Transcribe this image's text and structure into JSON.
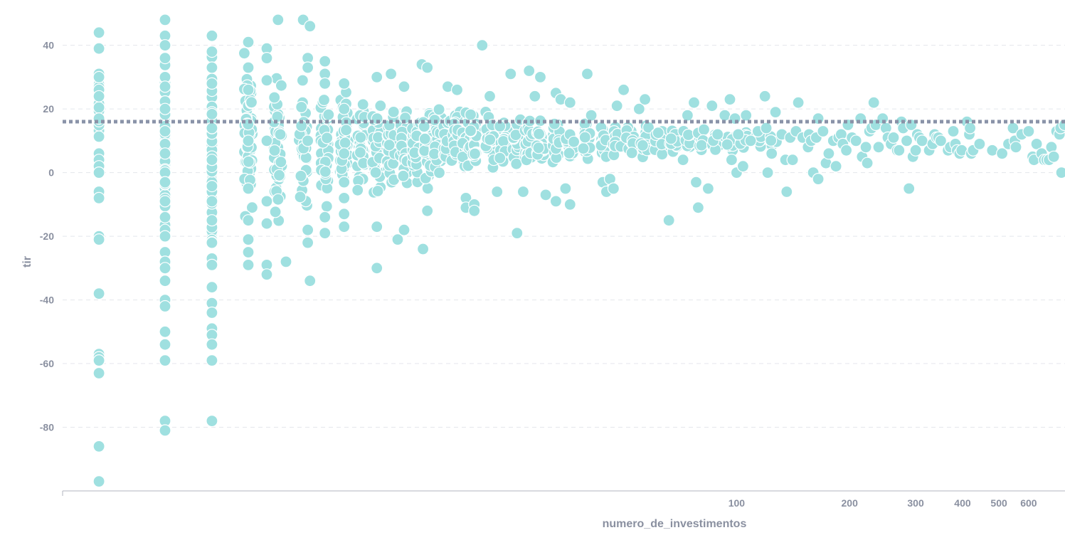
{
  "chart_data": {
    "type": "scatter",
    "title": "",
    "xlabel": "numero_de_investimentos",
    "ylabel": "tir",
    "x_scale": "log",
    "xlim": [
      1.6,
      750
    ],
    "ylim": [
      -100,
      52
    ],
    "x_ticks": [
      100,
      200,
      300,
      400,
      500,
      600
    ],
    "y_ticks": [
      40,
      20,
      0,
      -20,
      -40,
      -60,
      -80
    ],
    "reference_line": {
      "y": 16,
      "style": "dotted",
      "color": "#8a93a8"
    },
    "grid": {
      "horizontal": true,
      "style": "dashed",
      "color": "#e4e6ec"
    },
    "colors": {
      "point_fill": "#9fe0e0",
      "point_stroke": "#ffffff",
      "axis_text": "#8a90a0",
      "axis_line": "#b0b4bf"
    },
    "dense_clusters": [
      {
        "x": 2,
        "ymin": -2,
        "ymax": 36
      },
      {
        "x": 3,
        "ymin": -30,
        "ymax": 44
      },
      {
        "x": 4,
        "ymin": -30,
        "ymax": 40
      },
      {
        "x": 5,
        "ymin": -22,
        "ymax": 40
      },
      {
        "x": 6,
        "ymin": -18,
        "ymax": 36
      },
      {
        "x": 7,
        "ymin": -16,
        "ymax": 32
      },
      {
        "x": 8,
        "ymin": -14,
        "ymax": 30
      },
      {
        "x": 9,
        "ymin": -14,
        "ymax": 30
      },
      {
        "x": 10,
        "ymin": -12,
        "ymax": 28
      },
      {
        "x": 11,
        "ymin": -12,
        "ymax": 27
      },
      {
        "x": 12,
        "ymin": -10,
        "ymax": 26
      },
      {
        "x": 13,
        "ymin": -10,
        "ymax": 25
      },
      {
        "x": 14,
        "ymin": -8,
        "ymax": 25
      },
      {
        "x": 15,
        "ymin": -8,
        "ymax": 24
      },
      {
        "x": 16,
        "ymin": -6,
        "ymax": 24
      },
      {
        "x": 17,
        "ymin": -6,
        "ymax": 23
      },
      {
        "x": 18,
        "ymin": -5,
        "ymax": 23
      },
      {
        "x": 19,
        "ymin": -5,
        "ymax": 22
      },
      {
        "x": 20,
        "ymin": -4,
        "ymax": 22
      },
      {
        "x": 22,
        "ymin": -3,
        "ymax": 21
      },
      {
        "x": 24,
        "ymin": -2,
        "ymax": 21
      },
      {
        "x": 26,
        "ymin": -2,
        "ymax": 20
      },
      {
        "x": 28,
        "ymin": -1,
        "ymax": 20
      },
      {
        "x": 30,
        "ymin": 0,
        "ymax": 20
      },
      {
        "x": 33,
        "ymin": 0,
        "ymax": 19
      },
      {
        "x": 36,
        "ymin": 1,
        "ymax": 19
      },
      {
        "x": 40,
        "ymin": 1,
        "ymax": 18
      },
      {
        "x": 44,
        "ymin": 2,
        "ymax": 18
      },
      {
        "x": 48,
        "ymin": 2,
        "ymax": 18
      },
      {
        "x": 52,
        "ymin": 3,
        "ymax": 17
      },
      {
        "x": 57,
        "ymin": 3,
        "ymax": 17
      },
      {
        "x": 62,
        "ymin": 3,
        "ymax": 17
      },
      {
        "x": 68,
        "ymin": 4,
        "ymax": 16
      },
      {
        "x": 74,
        "ymin": 4,
        "ymax": 16
      },
      {
        "x": 80,
        "ymin": 5,
        "ymax": 16
      },
      {
        "x": 88,
        "ymin": 5,
        "ymax": 15
      },
      {
        "x": 96,
        "ymin": 5,
        "ymax": 15
      },
      {
        "x": 105,
        "ymin": 6,
        "ymax": 15
      },
      {
        "x": 115,
        "ymin": 6,
        "ymax": 14
      },
      {
        "x": 125,
        "ymin": 7,
        "ymax": 14
      }
    ],
    "points": [
      [
        2,
        44
      ],
      [
        2,
        39
      ],
      [
        2,
        31
      ],
      [
        2,
        30
      ],
      [
        2,
        26
      ],
      [
        2,
        24
      ],
      [
        2,
        17
      ],
      [
        2,
        6
      ],
      [
        2,
        4
      ],
      [
        2,
        2
      ],
      [
        2,
        0
      ],
      [
        2,
        -6
      ],
      [
        2,
        -8
      ],
      [
        2,
        -20
      ],
      [
        2,
        -21
      ],
      [
        2,
        -38
      ],
      [
        2,
        -57
      ],
      [
        2,
        -58
      ],
      [
        2,
        -59
      ],
      [
        2,
        -63
      ],
      [
        2,
        -86
      ],
      [
        2,
        -97
      ],
      [
        3,
        48
      ],
      [
        3,
        43
      ],
      [
        3,
        40
      ],
      [
        3,
        36
      ],
      [
        3,
        30
      ],
      [
        3,
        27
      ],
      [
        3,
        20
      ],
      [
        3,
        13
      ],
      [
        3,
        9
      ],
      [
        3,
        6
      ],
      [
        3,
        0
      ],
      [
        3,
        -3
      ],
      [
        3,
        -9
      ],
      [
        3,
        -14
      ],
      [
        3,
        -18
      ],
      [
        3,
        -20
      ],
      [
        3,
        -25
      ],
      [
        3,
        -28
      ],
      [
        3,
        -30
      ],
      [
        3,
        -34
      ],
      [
        3,
        -40
      ],
      [
        3,
        -42
      ],
      [
        3,
        -50
      ],
      [
        3,
        -54
      ],
      [
        3,
        -59
      ],
      [
        3,
        -78
      ],
      [
        3,
        -81
      ],
      [
        4,
        43
      ],
      [
        4,
        38
      ],
      [
        4,
        33
      ],
      [
        4,
        28
      ],
      [
        4,
        14
      ],
      [
        4,
        4
      ],
      [
        4,
        -9
      ],
      [
        4,
        -15
      ],
      [
        4,
        -22
      ],
      [
        4,
        -27
      ],
      [
        4,
        -29
      ],
      [
        4,
        -36
      ],
      [
        4,
        -41
      ],
      [
        4,
        -44
      ],
      [
        4,
        -49
      ],
      [
        4,
        -51
      ],
      [
        4,
        -54
      ],
      [
        4,
        -59
      ],
      [
        4,
        -78
      ],
      [
        5,
        41
      ],
      [
        5,
        33
      ],
      [
        5,
        26
      ],
      [
        5,
        10
      ],
      [
        5,
        -5
      ],
      [
        5,
        -15
      ],
      [
        5,
        -21
      ],
      [
        5,
        -25
      ],
      [
        5,
        -29
      ],
      [
        5.6,
        39
      ],
      [
        5.6,
        36
      ],
      [
        5.6,
        29
      ],
      [
        5.6,
        10
      ],
      [
        5.6,
        -9
      ],
      [
        5.6,
        -16
      ],
      [
        5.6,
        -29
      ],
      [
        5.6,
        -32
      ],
      [
        6,
        48
      ],
      [
        6.3,
        -28
      ],
      [
        7,
        48
      ],
      [
        7.3,
        46
      ],
      [
        7.2,
        36
      ],
      [
        7.2,
        33
      ],
      [
        7.2,
        10
      ],
      [
        7.2,
        -18
      ],
      [
        7.2,
        -22
      ],
      [
        7.3,
        -34
      ],
      [
        8,
        35
      ],
      [
        8,
        31
      ],
      [
        8,
        28
      ],
      [
        8,
        -19
      ],
      [
        8,
        -14
      ],
      [
        9,
        28
      ],
      [
        9,
        20
      ],
      [
        9,
        6
      ],
      [
        9,
        -3
      ],
      [
        9,
        -8
      ],
      [
        9,
        -13
      ],
      [
        9,
        -17
      ],
      [
        11,
        30
      ],
      [
        11,
        -17
      ],
      [
        11,
        -30
      ],
      [
        12,
        31
      ],
      [
        12.5,
        -21
      ],
      [
        13,
        -18
      ],
      [
        13,
        27
      ],
      [
        14.5,
        34
      ],
      [
        14.6,
        -24
      ],
      [
        15,
        33
      ],
      [
        15,
        -12
      ],
      [
        17,
        27
      ],
      [
        18,
        26
      ],
      [
        19,
        -8
      ],
      [
        19,
        -11
      ],
      [
        20,
        -10
      ],
      [
        20,
        -12
      ],
      [
        21,
        40
      ],
      [
        22,
        24
      ],
      [
        23,
        -6
      ],
      [
        25,
        31
      ],
      [
        26,
        -19
      ],
      [
        27,
        -6
      ],
      [
        28,
        32
      ],
      [
        29,
        24
      ],
      [
        30,
        30
      ],
      [
        31,
        -7
      ],
      [
        33,
        -9
      ],
      [
        33,
        25
      ],
      [
        34,
        23
      ],
      [
        35,
        -5
      ],
      [
        36,
        22
      ],
      [
        36,
        -10
      ],
      [
        40,
        31
      ],
      [
        41,
        18
      ],
      [
        44,
        -3
      ],
      [
        45,
        -6
      ],
      [
        46,
        -2
      ],
      [
        47,
        -5
      ],
      [
        48,
        21
      ],
      [
        50,
        26
      ],
      [
        55,
        20
      ],
      [
        57,
        23
      ],
      [
        66,
        -15
      ],
      [
        72,
        4
      ],
      [
        74,
        18
      ],
      [
        77,
        22
      ],
      [
        78,
        -3
      ],
      [
        79,
        -11
      ],
      [
        84,
        -5
      ],
      [
        86,
        21
      ],
      [
        89,
        12
      ],
      [
        93,
        18
      ],
      [
        96,
        23
      ],
      [
        97,
        4
      ],
      [
        99,
        17
      ],
      [
        100,
        0
      ],
      [
        101,
        12
      ],
      [
        104,
        2
      ],
      [
        106,
        18
      ],
      [
        109,
        10
      ],
      [
        114,
        13
      ],
      [
        119,
        24
      ],
      [
        120,
        14
      ],
      [
        121,
        0
      ],
      [
        124,
        6
      ],
      [
        127,
        19
      ],
      [
        132,
        12
      ],
      [
        135,
        4
      ],
      [
        136,
        -6
      ],
      [
        139,
        11
      ],
      [
        141,
        4
      ],
      [
        144,
        13
      ],
      [
        146,
        22
      ],
      [
        150,
        11
      ],
      [
        155,
        8
      ],
      [
        156,
        12
      ],
      [
        158,
        10
      ],
      [
        160,
        0
      ],
      [
        163,
        11
      ],
      [
        165,
        -2
      ],
      [
        165,
        17
      ],
      [
        170,
        13
      ],
      [
        173,
        3
      ],
      [
        176,
        6
      ],
      [
        181,
        10
      ],
      [
        184,
        2
      ],
      [
        187,
        11
      ],
      [
        190,
        12
      ],
      [
        192,
        9
      ],
      [
        196,
        7
      ],
      [
        198,
        15
      ],
      [
        203,
        11
      ],
      [
        208,
        10
      ],
      [
        214,
        17
      ],
      [
        216,
        5
      ],
      [
        221,
        8
      ],
      [
        223,
        3
      ],
      [
        226,
        13
      ],
      [
        229,
        14
      ],
      [
        232,
        22
      ],
      [
        235,
        15
      ],
      [
        239,
        8
      ],
      [
        245,
        17
      ],
      [
        250,
        14
      ],
      [
        253,
        11
      ],
      [
        258,
        9
      ],
      [
        262,
        11
      ],
      [
        268,
        7
      ],
      [
        271,
        7
      ],
      [
        275,
        16
      ],
      [
        278,
        14
      ],
      [
        284,
        10
      ],
      [
        288,
        -5
      ],
      [
        292,
        15
      ],
      [
        295,
        5
      ],
      [
        300,
        7
      ],
      [
        303,
        12
      ],
      [
        307,
        11
      ],
      [
        312,
        10
      ],
      [
        326,
        7
      ],
      [
        333,
        9
      ],
      [
        337,
        12
      ],
      [
        341,
        11
      ],
      [
        345,
        11
      ],
      [
        350,
        10
      ],
      [
        366,
        7
      ],
      [
        371,
        8
      ],
      [
        378,
        13
      ],
      [
        383,
        9
      ],
      [
        387,
        7
      ],
      [
        393,
        6
      ],
      [
        398,
        7
      ],
      [
        411,
        16
      ],
      [
        417,
        12
      ],
      [
        419,
        14
      ],
      [
        422,
        6
      ],
      [
        427,
        7
      ],
      [
        444,
        9
      ],
      [
        480,
        7
      ],
      [
        510,
        6
      ],
      [
        530,
        9
      ],
      [
        545,
        14
      ],
      [
        551,
        10
      ],
      [
        555,
        8
      ],
      [
        575,
        12
      ],
      [
        600,
        13
      ],
      [
        615,
        5
      ],
      [
        620,
        4
      ],
      [
        630,
        9
      ],
      [
        650,
        6
      ],
      [
        660,
        4
      ],
      [
        670,
        4
      ],
      [
        680,
        4
      ],
      [
        690,
        8
      ],
      [
        700,
        5
      ],
      [
        712,
        13
      ],
      [
        725,
        12
      ],
      [
        730,
        14
      ],
      [
        734,
        0
      ],
      [
        748,
        15
      ]
    ]
  }
}
